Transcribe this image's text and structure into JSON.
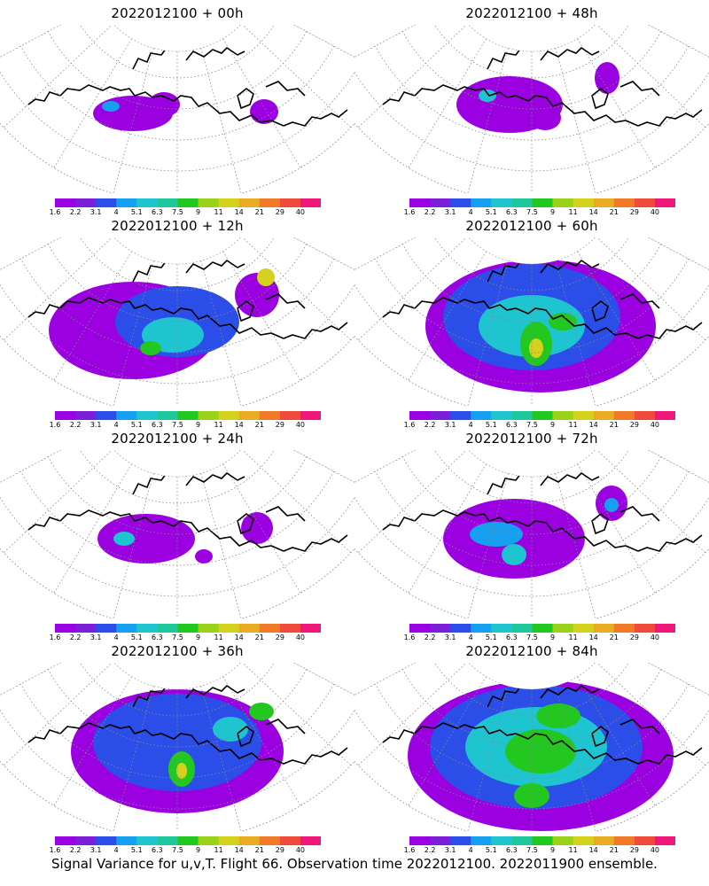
{
  "figure": {
    "footer": "Signal Variance for u,v,T. Flight 66. Observation time 2022012100. 2022011900 ensemble."
  },
  "panels": [
    {
      "title": "2022012100 + 00h",
      "level": 0
    },
    {
      "title": "2022012100 + 48h",
      "level": 4
    },
    {
      "title": "2022012100 + 12h",
      "level": 1
    },
    {
      "title": "2022012100 + 60h",
      "level": 5
    },
    {
      "title": "2022012100 + 24h",
      "level": 2
    },
    {
      "title": "2022012100 + 72h",
      "level": 6
    },
    {
      "title": "2022012100 + 36h",
      "level": 3
    },
    {
      "title": "2022012100 + 84h",
      "level": 7
    }
  ],
  "colorbar": {
    "labels": [
      "1.6",
      "2.2",
      "3.1",
      "4",
      "5.1",
      "6.3",
      "7.5",
      "9",
      "11",
      "14",
      "21",
      "29",
      "40"
    ],
    "colors": [
      "#9b00e0",
      "#7a1fd6",
      "#2b4de8",
      "#16a0f0",
      "#1ec4d0",
      "#1fc89a",
      "#22c81f",
      "#9ad21a",
      "#d4d21c",
      "#e8ad22",
      "#f07a28",
      "#f04a3c",
      "#ee1878"
    ]
  }
}
